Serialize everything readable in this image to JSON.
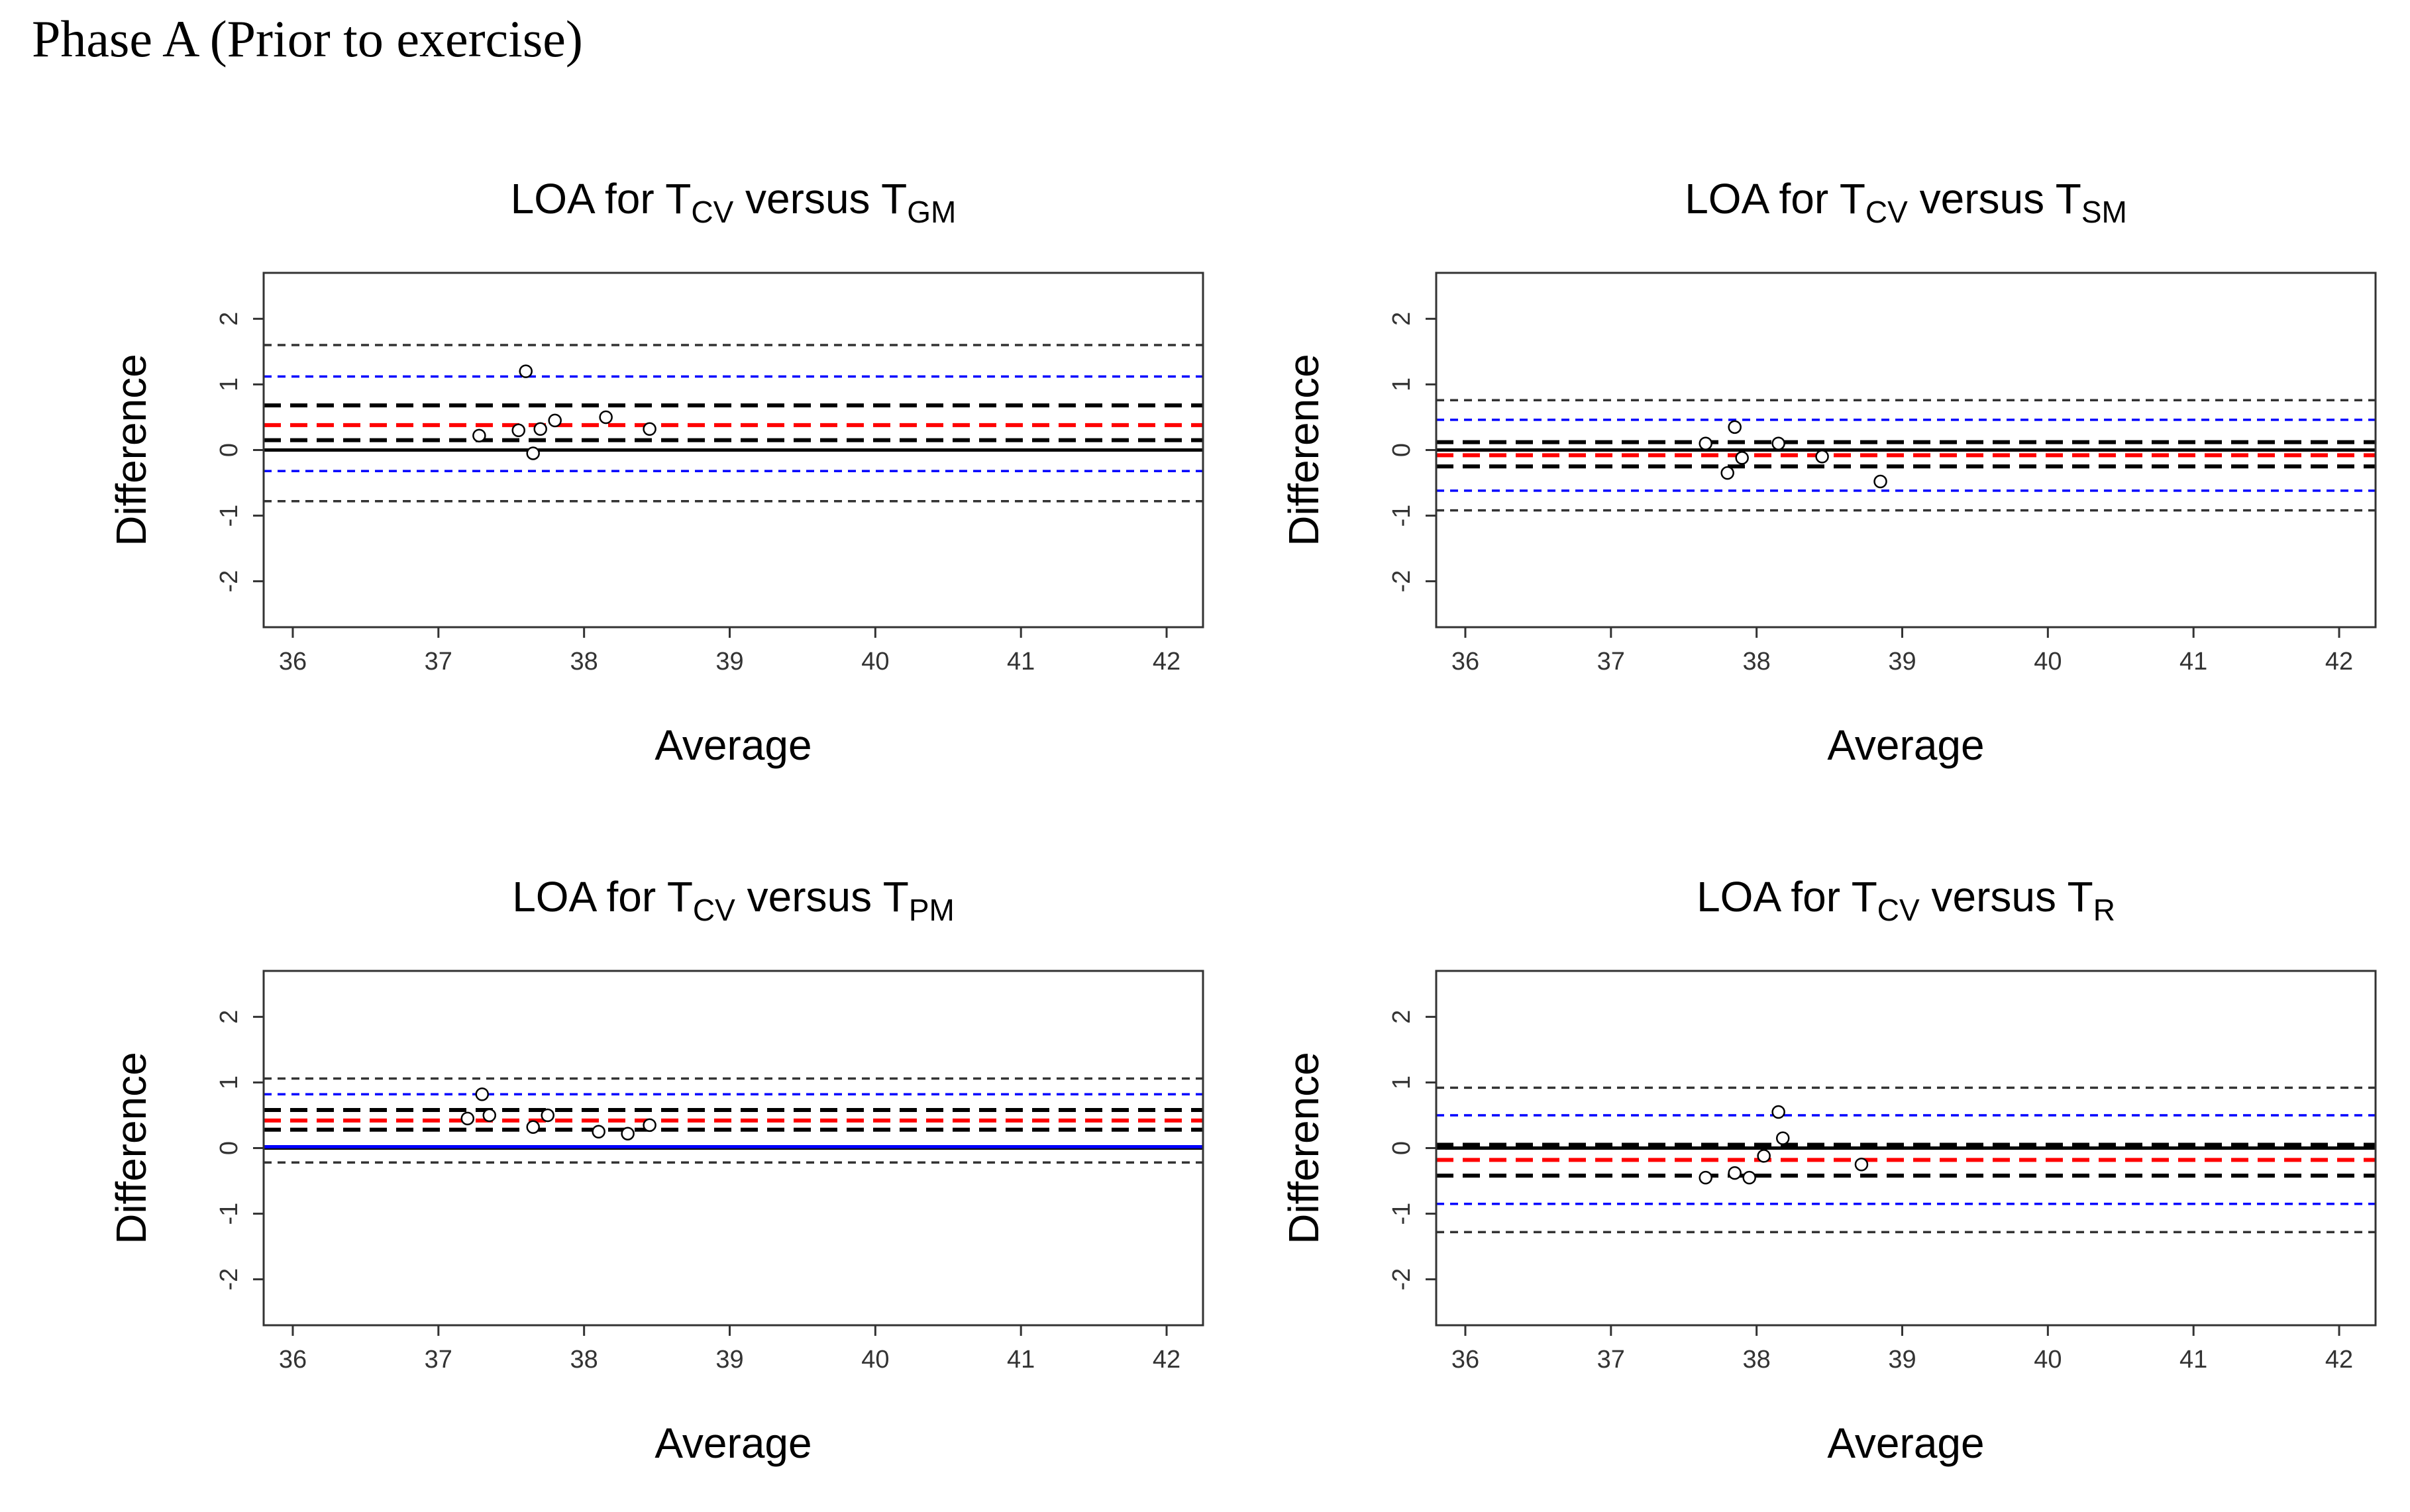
{
  "page_title": "Phase A (Prior to exercise)",
  "colors": {
    "black": "#000000",
    "red": "#ff0000",
    "blue": "#0000ff",
    "grey": "#333333"
  },
  "chart_data": [
    {
      "type": "scatter",
      "title": "LOA for TCV versus TGM",
      "title_parts": {
        "prefix": "LOA for T",
        "sub1": "CV",
        "mid": " versus T",
        "sub2": "GM"
      },
      "xlabel": "Average",
      "ylabel": "Difference",
      "xlim": [
        35.8,
        42.25
      ],
      "ylim": [
        -2.7,
        2.7
      ],
      "xticks": [
        36,
        37,
        38,
        39,
        40,
        41,
        42
      ],
      "yticks": [
        -2,
        -1,
        0,
        1,
        2
      ],
      "points": [
        {
          "x": 37.28,
          "y": 0.22
        },
        {
          "x": 37.55,
          "y": 0.3
        },
        {
          "x": 37.6,
          "y": 1.2
        },
        {
          "x": 37.65,
          "y": -0.05
        },
        {
          "x": 37.7,
          "y": 0.32
        },
        {
          "x": 37.8,
          "y": 0.45
        },
        {
          "x": 38.15,
          "y": 0.5
        },
        {
          "x": 38.45,
          "y": 0.32
        }
      ],
      "lines": [
        {
          "y": 0.0,
          "color": "#000000",
          "style": "solid"
        },
        {
          "y": 0.38,
          "color": "#ff0000",
          "style": "dashed-thick"
        },
        {
          "y": 0.68,
          "color": "#000000",
          "style": "dashed-thick"
        },
        {
          "y": 0.15,
          "color": "#000000",
          "style": "dashed-thick"
        },
        {
          "y": 1.12,
          "color": "#0000ff",
          "style": "dashed"
        },
        {
          "y": -0.32,
          "color": "#0000ff",
          "style": "dashed"
        },
        {
          "y": 1.6,
          "color": "#333333",
          "style": "dashed"
        },
        {
          "y": -0.78,
          "color": "#333333",
          "style": "dashed"
        }
      ]
    },
    {
      "type": "scatter",
      "title": "LOA for TCV versus TSM",
      "title_parts": {
        "prefix": "LOA for T",
        "sub1": "CV",
        "mid": " versus T",
        "sub2": "SM"
      },
      "xlabel": "Average",
      "ylabel": "Difference",
      "xlim": [
        35.8,
        42.25
      ],
      "ylim": [
        -2.7,
        2.7
      ],
      "xticks": [
        36,
        37,
        38,
        39,
        40,
        41,
        42
      ],
      "yticks": [
        -2,
        -1,
        0,
        1,
        2
      ],
      "points": [
        {
          "x": 37.65,
          "y": 0.1
        },
        {
          "x": 37.8,
          "y": -0.35
        },
        {
          "x": 37.85,
          "y": 0.35
        },
        {
          "x": 37.9,
          "y": -0.12
        },
        {
          "x": 38.15,
          "y": 0.1
        },
        {
          "x": 38.45,
          "y": -0.1
        },
        {
          "x": 38.85,
          "y": -0.48
        }
      ],
      "lines": [
        {
          "y": 0.0,
          "color": "#000000",
          "style": "solid"
        },
        {
          "y": -0.08,
          "color": "#ff0000",
          "style": "dashed-thick"
        },
        {
          "y": 0.12,
          "color": "#000000",
          "style": "dashed-thick"
        },
        {
          "y": -0.25,
          "color": "#000000",
          "style": "dashed-thick"
        },
        {
          "y": 0.46,
          "color": "#0000ff",
          "style": "dashed"
        },
        {
          "y": -0.62,
          "color": "#0000ff",
          "style": "dashed"
        },
        {
          "y": 0.76,
          "color": "#333333",
          "style": "dashed"
        },
        {
          "y": -0.92,
          "color": "#333333",
          "style": "dashed"
        }
      ]
    },
    {
      "type": "scatter",
      "title": "LOA for TCV versus TPM",
      "title_parts": {
        "prefix": "LOA for T",
        "sub1": "CV",
        "mid": " versus T",
        "sub2": "PM"
      },
      "xlabel": "Average",
      "ylabel": "Difference",
      "xlim": [
        35.8,
        42.25
      ],
      "ylim": [
        -2.7,
        2.7
      ],
      "xticks": [
        36,
        37,
        38,
        39,
        40,
        41,
        42
      ],
      "yticks": [
        -2,
        -1,
        0,
        1,
        2
      ],
      "points": [
        {
          "x": 37.2,
          "y": 0.45
        },
        {
          "x": 37.3,
          "y": 0.82
        },
        {
          "x": 37.35,
          "y": 0.5
        },
        {
          "x": 37.65,
          "y": 0.32
        },
        {
          "x": 37.75,
          "y": 0.5
        },
        {
          "x": 38.1,
          "y": 0.25
        },
        {
          "x": 38.3,
          "y": 0.22
        },
        {
          "x": 38.45,
          "y": 0.35
        }
      ],
      "lines": [
        {
          "y": 0.0,
          "color": "#000000",
          "style": "solid"
        },
        {
          "y": 0.02,
          "color": "#0000ff",
          "style": "solid"
        },
        {
          "y": 0.42,
          "color": "#ff0000",
          "style": "dashed-thick"
        },
        {
          "y": 0.58,
          "color": "#000000",
          "style": "dashed-thick"
        },
        {
          "y": 0.28,
          "color": "#000000",
          "style": "dashed-thick"
        },
        {
          "y": 0.82,
          "color": "#0000ff",
          "style": "dashed"
        },
        {
          "y": 1.06,
          "color": "#333333",
          "style": "dashed"
        },
        {
          "y": -0.22,
          "color": "#333333",
          "style": "dashed"
        }
      ]
    },
    {
      "type": "scatter",
      "title": "LOA for TCV versus TR",
      "title_parts": {
        "prefix": "LOA for T",
        "sub1": "CV",
        "mid": " versus T",
        "sub2": "R"
      },
      "xlabel": "Average",
      "ylabel": "Difference",
      "xlim": [
        35.8,
        42.25
      ],
      "ylim": [
        -2.7,
        2.7
      ],
      "xticks": [
        36,
        37,
        38,
        39,
        40,
        41,
        42
      ],
      "yticks": [
        -2,
        -1,
        0,
        1,
        2
      ],
      "points": [
        {
          "x": 37.65,
          "y": -0.45
        },
        {
          "x": 37.85,
          "y": -0.38
        },
        {
          "x": 37.95,
          "y": -0.45
        },
        {
          "x": 38.05,
          "y": -0.12
        },
        {
          "x": 38.15,
          "y": 0.55
        },
        {
          "x": 38.18,
          "y": 0.15
        },
        {
          "x": 38.72,
          "y": -0.25
        }
      ],
      "lines": [
        {
          "y": 0.0,
          "color": "#000000",
          "style": "solid"
        },
        {
          "y": -0.18,
          "color": "#ff0000",
          "style": "dashed-thick"
        },
        {
          "y": 0.05,
          "color": "#000000",
          "style": "dashed-thick"
        },
        {
          "y": -0.42,
          "color": "#000000",
          "style": "dashed-thick"
        },
        {
          "y": 0.5,
          "color": "#0000ff",
          "style": "dashed"
        },
        {
          "y": -0.85,
          "color": "#0000ff",
          "style": "dashed"
        },
        {
          "y": 0.92,
          "color": "#333333",
          "style": "dashed"
        },
        {
          "y": -1.28,
          "color": "#333333",
          "style": "dashed"
        }
      ]
    }
  ]
}
